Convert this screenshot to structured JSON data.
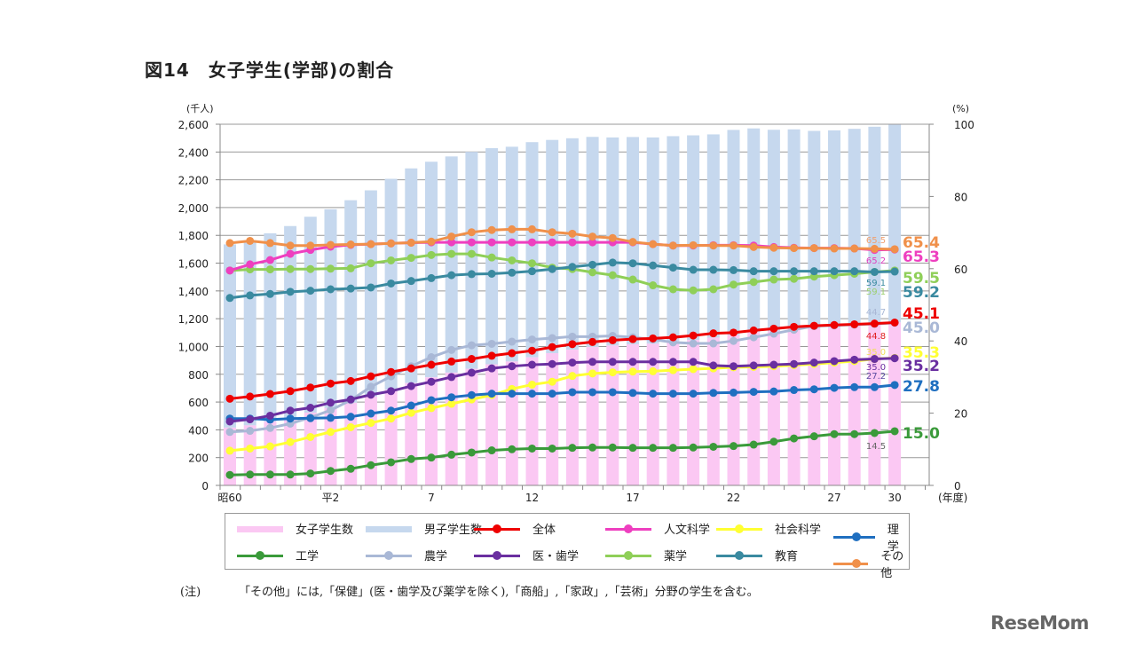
{
  "title": "図14　女子学生(学部)の割合",
  "note": {
    "label": "(注)",
    "text": "「その他」には,「保健」(医・歯学及び薬学を除く),「商船」,「家政」,「芸術」分野の学生を含む。"
  },
  "logo": "ReseMom",
  "chart_data": {
    "type": "bar+line",
    "title": "図14　女子学生(学部)の割合",
    "y_left_unit": "(千人)",
    "y_right_unit": "(%)",
    "x_unit": "(年度)",
    "ylim_left": [
      0,
      2600
    ],
    "ylim_right": [
      0,
      100
    ],
    "left_ticks": [
      "0",
      "200",
      "400",
      "600",
      "800",
      "1,000",
      "1,200",
      "1,400",
      "1,600",
      "1,800",
      "2,000",
      "2,200",
      "2,400",
      "2,600"
    ],
    "right_ticks": [
      "0",
      "20",
      "40",
      "60",
      "80",
      "100"
    ],
    "grid": true,
    "legend_position": "bottom",
    "x_tick_labels": {
      "0": "昭60",
      "5": "平2",
      "10": "7",
      "15": "12",
      "20": "17",
      "25": "22",
      "30": "27",
      "33": "30"
    },
    "x": [
      "昭60",
      "61",
      "62",
      "63",
      "平元",
      "2",
      "3",
      "4",
      "5",
      "6",
      "7",
      "8",
      "9",
      "10",
      "11",
      "12",
      "13",
      "14",
      "15",
      "16",
      "17",
      "18",
      "19",
      "20",
      "21",
      "22",
      "23",
      "24",
      "25",
      "26",
      "27",
      "28",
      "29",
      "30"
    ],
    "bars": [
      {
        "name": "女子学生数",
        "color": "#fbc8f3",
        "values": [
          416,
          432,
          459,
          487,
          524,
          557,
          595,
          639,
          689,
          737,
          778,
          812,
          840,
          872,
          892,
          922,
          952,
          977,
          996,
          1007,
          1016,
          1020,
          1031,
          1046,
          1064,
          1082,
          1103,
          1111,
          1125,
          1128,
          1135,
          1145,
          1157,
          1173
        ]
      },
      {
        "name": "男子学生数",
        "color": "#c6d8ee",
        "values": [
          1319,
          1326,
          1356,
          1380,
          1410,
          1431,
          1458,
          1485,
          1518,
          1545,
          1552,
          1556,
          1561,
          1556,
          1546,
          1549,
          1535,
          1522,
          1513,
          1498,
          1492,
          1485,
          1483,
          1474,
          1463,
          1477,
          1467,
          1449,
          1438,
          1424,
          1421,
          1422,
          1425,
          1427
        ]
      }
    ],
    "series": [
      {
        "name": "全体",
        "color": "#ee0000",
        "values": [
          24.0,
          24.6,
          25.3,
          26.1,
          27.1,
          28.2,
          28.9,
          30.2,
          31.4,
          32.4,
          33.4,
          34.3,
          35.0,
          35.9,
          36.6,
          37.3,
          38.3,
          39.1,
          39.7,
          40.2,
          40.5,
          40.7,
          41.0,
          41.5,
          42.1,
          42.3,
          42.9,
          43.4,
          43.9,
          44.2,
          44.4,
          44.6,
          44.8,
          45.1
        ]
      },
      {
        "name": "人文科学",
        "color": "#ee3fbf",
        "values": [
          59.5,
          61.2,
          62.4,
          64.1,
          65.2,
          66.1,
          66.6,
          66.8,
          67.0,
          67.2,
          67.3,
          67.3,
          67.3,
          67.3,
          67.3,
          67.3,
          67.3,
          67.3,
          67.3,
          67.3,
          67.3,
          66.8,
          66.4,
          66.4,
          66.5,
          66.5,
          66.4,
          66.0,
          65.8,
          65.7,
          65.7,
          65.6,
          65.2,
          65.3
        ]
      },
      {
        "name": "社会科学",
        "color": "#ffff33",
        "values": [
          9.6,
          10.2,
          10.8,
          12.0,
          13.4,
          14.8,
          16.1,
          17.3,
          18.5,
          20.1,
          21.4,
          22.6,
          23.8,
          25.0,
          26.7,
          27.9,
          28.7,
          30.3,
          31.0,
          31.3,
          31.5,
          31.6,
          31.9,
          32.2,
          32.4,
          32.7,
          32.8,
          33.0,
          33.3,
          33.6,
          34.0,
          34.4,
          35.0,
          35.3
        ]
      },
      {
        "name": "理学",
        "color": "#1f6fc0",
        "values": [
          18.5,
          18.5,
          18.2,
          18.5,
          18.6,
          18.7,
          19.0,
          19.9,
          20.7,
          22.1,
          23.6,
          24.4,
          25.0,
          25.4,
          25.4,
          25.4,
          25.4,
          25.8,
          25.8,
          25.8,
          25.6,
          25.4,
          25.4,
          25.4,
          25.6,
          25.7,
          25.9,
          26.0,
          26.4,
          26.6,
          27.0,
          27.2,
          27.2,
          27.8
        ]
      },
      {
        "name": "工学",
        "color": "#3a9a3a",
        "values": [
          2.9,
          3.0,
          3.0,
          3.0,
          3.3,
          4.0,
          4.6,
          5.6,
          6.4,
          7.3,
          7.7,
          8.5,
          9.1,
          9.7,
          10.0,
          10.2,
          10.2,
          10.4,
          10.5,
          10.5,
          10.4,
          10.4,
          10.4,
          10.5,
          10.7,
          10.9,
          11.3,
          12.1,
          13.0,
          13.6,
          14.2,
          14.2,
          14.5,
          15.0
        ]
      },
      {
        "name": "農学",
        "color": "#a9b8d6",
        "values": [
          14.8,
          15.1,
          15.9,
          17.1,
          18.8,
          20.8,
          23.6,
          27.3,
          30.2,
          33.0,
          35.5,
          37.5,
          38.8,
          39.2,
          39.8,
          40.4,
          40.8,
          41.2,
          41.2,
          41.4,
          41.0,
          40.4,
          39.6,
          39.3,
          39.3,
          40.0,
          41.0,
          42.0,
          43.1,
          44.1,
          44.3,
          44.5,
          44.7,
          45.0
        ]
      },
      {
        "name": "医・歯学",
        "color": "#6a2fa0",
        "values": [
          17.7,
          18.3,
          19.3,
          20.7,
          21.5,
          22.9,
          23.8,
          25.1,
          26.1,
          27.5,
          28.7,
          30.0,
          31.2,
          32.4,
          33.0,
          33.4,
          33.6,
          34.0,
          34.2,
          34.2,
          34.2,
          34.2,
          34.2,
          34.2,
          33.2,
          33.0,
          33.2,
          33.4,
          33.6,
          34.0,
          34.4,
          34.8,
          35.0,
          35.2
        ]
      },
      {
        "name": "薬学",
        "color": "#8fcf58",
        "values": [
          59.5,
          59.8,
          59.8,
          59.9,
          59.9,
          60.0,
          60.1,
          61.5,
          62.3,
          63.0,
          63.8,
          64.1,
          64.1,
          63.1,
          62.3,
          61.5,
          60.3,
          59.9,
          59.0,
          58.2,
          57.0,
          55.4,
          54.3,
          54.0,
          54.3,
          55.6,
          56.3,
          57.0,
          57.2,
          57.8,
          58.2,
          58.6,
          59.1,
          59.5
        ]
      },
      {
        "name": "教育",
        "color": "#3a8aa0",
        "values": [
          51.9,
          52.6,
          53.0,
          53.6,
          53.9,
          54.3,
          54.5,
          54.8,
          55.9,
          56.6,
          57.4,
          58.2,
          58.5,
          58.6,
          58.9,
          59.3,
          59.9,
          60.5,
          61.1,
          61.7,
          61.5,
          60.9,
          60.3,
          59.7,
          59.7,
          59.6,
          59.3,
          59.3,
          59.3,
          59.3,
          59.3,
          59.3,
          59.1,
          59.2
        ]
      },
      {
        "name": "その他",
        "color": "#f0904a",
        "values": [
          67.1,
          67.7,
          67.1,
          66.4,
          66.4,
          66.6,
          66.7,
          66.8,
          67.0,
          67.2,
          67.5,
          68.9,
          70.1,
          70.7,
          70.9,
          70.9,
          70.1,
          69.7,
          68.9,
          68.5,
          67.4,
          66.8,
          66.4,
          66.5,
          66.4,
          66.4,
          66.0,
          65.8,
          65.7,
          65.7,
          65.6,
          65.6,
          65.5,
          65.4
        ]
      }
    ]
  }
}
